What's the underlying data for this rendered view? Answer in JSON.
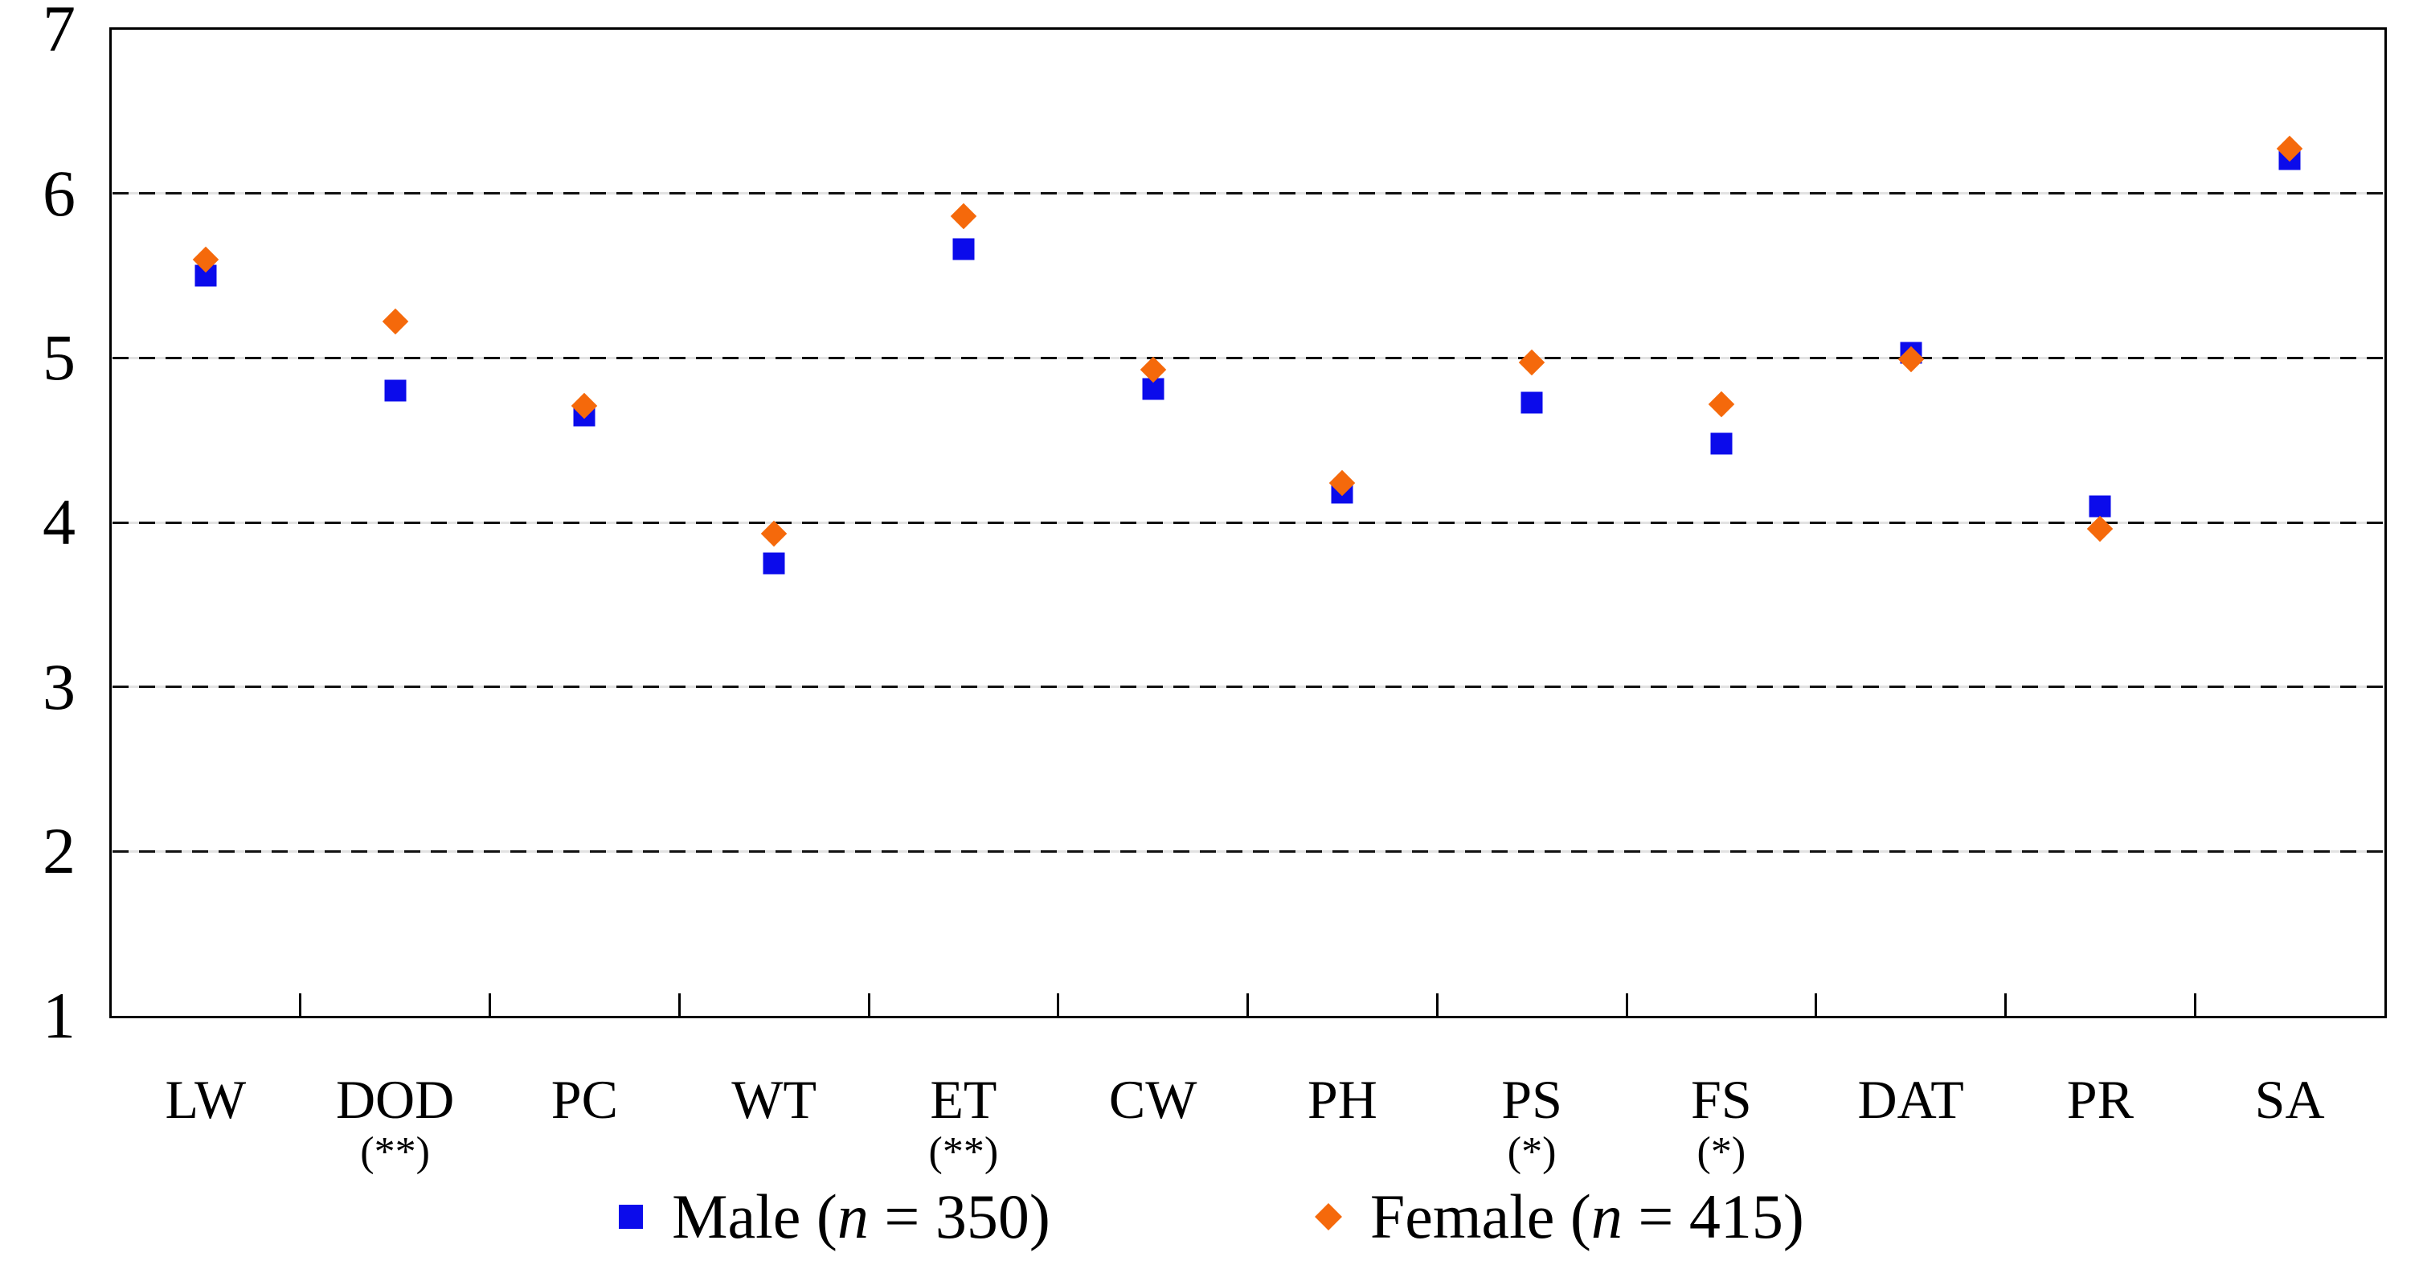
{
  "figure": {
    "background": "#ffffff",
    "male_color": "#0b0beb",
    "female_color": "#f5690b",
    "axis_color": "#000000",
    "gridline_color": "#111111"
  },
  "legend": {
    "male": {
      "pre": "Male (",
      "n": "n",
      "post": " = 350)"
    },
    "female": {
      "pre": "Female (",
      "n": "n",
      "post": " = 415)"
    }
  },
  "chart_data": {
    "type": "scatter",
    "title": "",
    "xlabel": "",
    "ylabel": "",
    "categories": [
      "LW",
      "DOD",
      "PC",
      "WT",
      "ET",
      "CW",
      "PH",
      "PS",
      "FS",
      "DAT",
      "PR",
      "SA"
    ],
    "category_notes": [
      "",
      "(**)",
      "",
      "",
      "(**)",
      "",
      "",
      "(*)",
      "(*)",
      "",
      "",
      ""
    ],
    "series": [
      {
        "name": "Male (n = 350)",
        "marker": "square",
        "color": "#0b0beb",
        "values": [
          5.5,
          4.8,
          4.65,
          3.75,
          5.66,
          4.81,
          4.18,
          4.73,
          4.48,
          5.03,
          4.1,
          6.21
        ]
      },
      {
        "name": "Female (n = 415)",
        "marker": "diamond",
        "color": "#f5690b",
        "values": [
          5.6,
          5.22,
          4.71,
          3.93,
          5.86,
          4.93,
          4.24,
          4.97,
          4.72,
          4.99,
          3.96,
          6.27
        ]
      }
    ],
    "ylim": [
      1,
      7
    ],
    "yticks": [
      7,
      6,
      5,
      4,
      3,
      2,
      1
    ],
    "gridlines": [
      6,
      5,
      4,
      3,
      2
    ],
    "grid_style": "dashed",
    "legend_position": "bottom"
  }
}
